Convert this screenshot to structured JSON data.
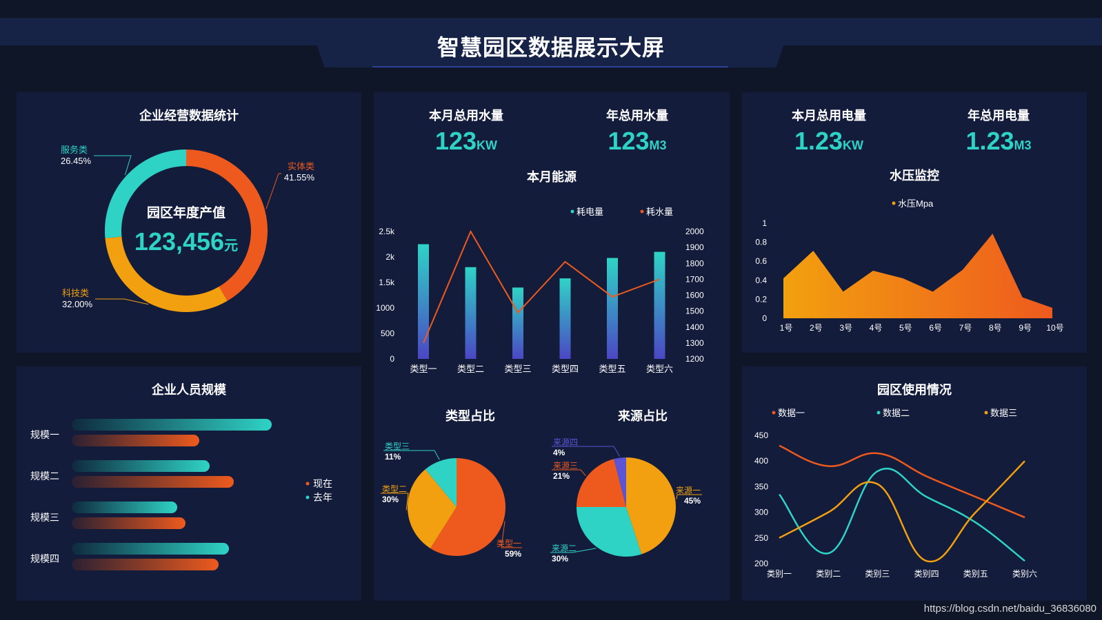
{
  "header": {
    "title": "智慧园区数据展示大屏"
  },
  "watermark": "https://blog.csdn.net/baidu_36836080",
  "colors": {
    "teal": "#2fd3c6",
    "orange": "#ee5a1e",
    "yellow": "#f2a00f",
    "purple": "#5b55d6",
    "background": "#0f1628",
    "panel": "#131c3b"
  },
  "business": {
    "title": "企业经营数据统计",
    "center_label": "园区年度产值",
    "center_value": "123,456",
    "center_unit": "元",
    "slices": [
      {
        "name": "实体类",
        "pct_label": "41.55%",
        "value": 41.55,
        "color": "#ee5a1e"
      },
      {
        "name": "科技类",
        "pct_label": "32.00%",
        "value": 32.0,
        "color": "#f2a00f"
      },
      {
        "name": "服务类",
        "pct_label": "26.45%",
        "value": 26.45,
        "color": "#2fd3c6"
      }
    ]
  },
  "water": {
    "month_label": "本月总用水量",
    "month_value": "123",
    "month_unit": "KW",
    "year_label": "年总用水量",
    "year_value": "123",
    "year_unit": "M3"
  },
  "power": {
    "month_label": "本月总用电量",
    "month_value": "1.23",
    "month_unit": "KW",
    "year_label": "年总用电量",
    "year_value": "1.23",
    "year_unit": "M3"
  },
  "staff": {
    "title": "企业人员规模",
    "legend": [
      "现在",
      "去年"
    ],
    "rows": [
      {
        "label": "规模一",
        "now": 290,
        "last": 185
      },
      {
        "label": "规模二",
        "now": 200,
        "last": 235
      },
      {
        "label": "规模三",
        "now": 153,
        "last": 165
      },
      {
        "label": "规模四",
        "now": 228,
        "last": 213
      }
    ]
  },
  "ratios": {
    "type_title": "类型占比",
    "source_title": "来源占比"
  },
  "park": {
    "title": "园区使用情况"
  },
  "chart_data": [
    {
      "id": "energy",
      "type": "bar",
      "title": "本月能源",
      "categories": [
        "类型一",
        "类型二",
        "类型三",
        "类型四",
        "类型五",
        "类型六"
      ],
      "series": [
        {
          "name": "耗电量",
          "type": "bar",
          "axis": "left",
          "values": [
            2250,
            1800,
            1400,
            1580,
            1980,
            2100
          ],
          "color": "#2fd3c6"
        },
        {
          "name": "耗水量",
          "type": "line",
          "axis": "right",
          "values": [
            1300,
            2000,
            1490,
            1810,
            1590,
            1700
          ],
          "color": "#ee5a1e"
        }
      ],
      "y_left": {
        "ticks": [
          "0",
          "500",
          "1000",
          "1.5k",
          "2k",
          "2.5k"
        ],
        "range": [
          0,
          2500
        ]
      },
      "y_right": {
        "ticks": [
          "1200",
          "1300",
          "1400",
          "1500",
          "1600",
          "1700",
          "1800",
          "1900",
          "2000"
        ],
        "range": [
          1200,
          2000
        ]
      }
    },
    {
      "id": "pressure",
      "type": "area",
      "title": "水压监控",
      "categories": [
        "1号",
        "2号",
        "3号",
        "4号",
        "5号",
        "6号",
        "7号",
        "8号",
        "9号",
        "10号"
      ],
      "series": [
        {
          "name": "水压Mpa",
          "values": [
            0.42,
            0.71,
            0.28,
            0.5,
            0.42,
            0.28,
            0.51,
            0.89,
            0.22,
            0.11
          ]
        }
      ],
      "y_ticks": [
        "0",
        "0.2",
        "0.4",
        "0.6",
        "0.8",
        "1"
      ],
      "ylim": [
        0,
        1
      ]
    },
    {
      "id": "type_share",
      "type": "pie",
      "title": "类型占比",
      "slices": [
        {
          "name": "类型一",
          "value": 59,
          "label": "59%",
          "color": "#ee5a1e"
        },
        {
          "name": "类型二",
          "value": 30,
          "label": "30%",
          "color": "#f2a00f"
        },
        {
          "name": "类型三",
          "value": 11,
          "label": "11%",
          "color": "#2fd3c6"
        }
      ]
    },
    {
      "id": "source_share",
      "type": "pie",
      "title": "来源占比",
      "slices": [
        {
          "name": "来源一",
          "value": 45,
          "label": "45%",
          "color": "#f2a00f"
        },
        {
          "name": "来源二",
          "value": 30,
          "label": "30%",
          "color": "#2fd3c6"
        },
        {
          "name": "来源三",
          "value": 21,
          "label": "21%",
          "color": "#ee5a1e"
        },
        {
          "name": "来源四",
          "value": 4,
          "label": "4%",
          "color": "#5b55d6"
        }
      ]
    },
    {
      "id": "park_usage",
      "type": "line",
      "title": "园区使用情况",
      "categories": [
        "类别一",
        "类别二",
        "类别三",
        "类别四",
        "类别五",
        "类别六"
      ],
      "series": [
        {
          "name": "数据一",
          "values": [
            430,
            390,
            415,
            370,
            330,
            290
          ],
          "color": "#ee5a1e"
        },
        {
          "name": "数据二",
          "values": [
            335,
            220,
            380,
            330,
            280,
            205
          ],
          "color": "#2fd3c6"
        },
        {
          "name": "数据三",
          "values": [
            250,
            300,
            355,
            205,
            300,
            400
          ],
          "color": "#f2a00f"
        }
      ],
      "y_ticks": [
        "200",
        "250",
        "300",
        "350",
        "400",
        "450"
      ],
      "ylim": [
        200,
        450
      ]
    }
  ]
}
